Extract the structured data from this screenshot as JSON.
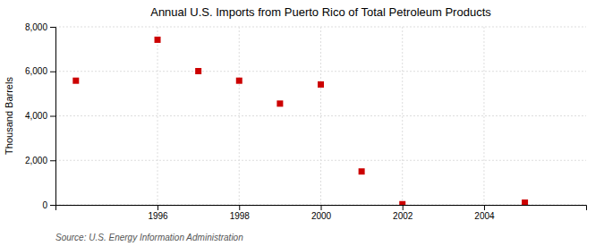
{
  "chart_data": {
    "type": "scatter",
    "title": "Annual U.S. Imports from Puerto Rico of Total Petroleum Products",
    "y_label": "Thousand Barrels",
    "source": "Source: U.S. Energy Information Administration",
    "x": [
      1994,
      1996,
      1997,
      1998,
      1999,
      2000,
      2001,
      2002,
      2005
    ],
    "values": [
      5580,
      7420,
      6010,
      5580,
      4550,
      5410,
      1500,
      30,
      100
    ],
    "color": "#cc0000",
    "marker": "square",
    "xlim": [
      1993.5,
      2006.5
    ],
    "ylim": [
      0,
      8000
    ],
    "xticks": [
      1996,
      1998,
      2000,
      2002,
      2004
    ],
    "yticks": [
      0,
      {
        "value": 2000,
        "label": "2,000"
      },
      {
        "value": 4000,
        "label": "4,000"
      },
      {
        "value": 6000,
        "label": "6,000"
      },
      {
        "value": 8000,
        "label": "8,000"
      }
    ],
    "grid": true
  }
}
